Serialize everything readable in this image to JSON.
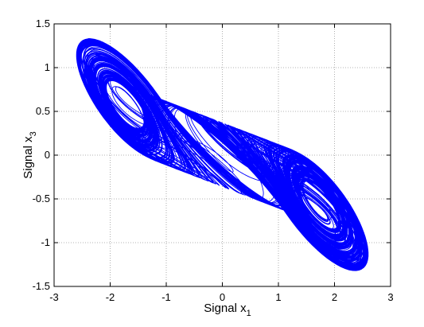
{
  "chart_data": {
    "type": "line",
    "title": "",
    "xlabel": {
      "text": "Signal x",
      "subscript": "1"
    },
    "ylabel": {
      "text": "Signal x",
      "subscript": "3"
    },
    "xlim": [
      -3,
      3
    ],
    "ylim": [
      -1.5,
      1.5
    ],
    "xticks": [
      -3,
      -2,
      -1,
      0,
      1,
      2,
      3
    ],
    "yticks": [
      -1.5,
      -1,
      -0.5,
      0,
      0.5,
      1,
      1.5
    ],
    "xtick_labels": [
      "-3",
      "-2",
      "-1",
      "0",
      "1",
      "2",
      "3"
    ],
    "ytick_labels": [
      "-1.5",
      "-1",
      "-0.5",
      "0",
      "0.5",
      "1",
      "1.5"
    ],
    "grid": true,
    "grid_style": "dotted",
    "line_color": "#0000ff",
    "series": [
      {
        "description_only": true,
        "trajectory_envelope": {
          "left_lobe_center": [
            -1.2,
            0.9
          ],
          "right_lobe_center": [
            1.2,
            -0.85
          ],
          "x_extent": [
            -2.6,
            2.6
          ],
          "y_extent": [
            -1.32,
            1.33
          ]
        }
      }
    ]
  }
}
